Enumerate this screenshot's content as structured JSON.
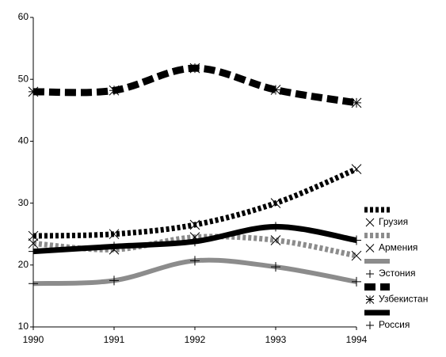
{
  "chart_data": {
    "type": "line",
    "x": [
      1990,
      1991,
      1992,
      1993,
      1994
    ],
    "xlim": [
      1990,
      1994
    ],
    "xticks": [
      1990,
      1991,
      1992,
      1993,
      1994
    ],
    "ylim": [
      10,
      60
    ],
    "yticks": [
      10,
      20,
      30,
      40,
      50,
      60
    ],
    "grid": false,
    "legend": "right",
    "series": [
      {
        "name": "Грузия",
        "color": "#000000",
        "style": "dotted",
        "marker": "x",
        "values": [
          24.7,
          25,
          26.5,
          30,
          35.5
        ]
      },
      {
        "name": "Армения",
        "color": "#8c8c8c",
        "style": "dotted",
        "marker": "x",
        "values": [
          23.5,
          22.5,
          24.5,
          24,
          21.5
        ]
      },
      {
        "name": "Эстония",
        "color": "#8c8c8c",
        "style": "solid",
        "marker": "plus",
        "values": [
          17,
          17.5,
          20.7,
          19.7,
          17.3
        ]
      },
      {
        "name": "Узбекистан",
        "color": "#000000",
        "style": "dashed",
        "marker": "asterisk",
        "values": [
          48,
          48.2,
          51.8,
          48.3,
          46.2
        ]
      },
      {
        "name": "Россия",
        "color": "#000000",
        "style": "solid",
        "marker": "plus",
        "values": [
          22.2,
          23,
          23.8,
          26.2,
          24
        ]
      }
    ]
  }
}
